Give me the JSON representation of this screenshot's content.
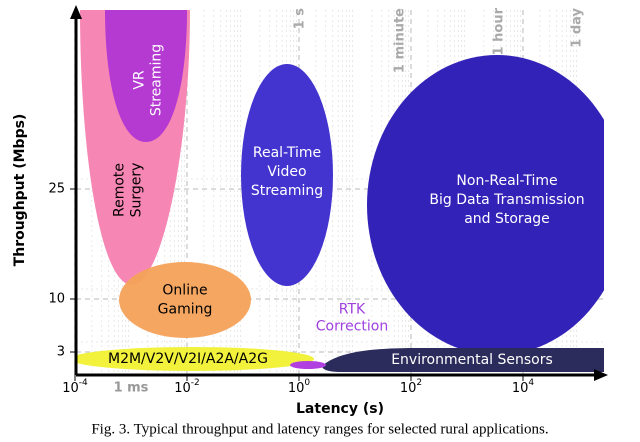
{
  "axes": {
    "x_label": "Latency (s)",
    "y_label": "Throughput (Mbps)",
    "x_ticks": [
      {
        "base": "10",
        "exp": "-4"
      },
      {
        "base": "10",
        "exp": "-2"
      },
      {
        "base": "10",
        "exp": "0"
      },
      {
        "base": "10",
        "exp": "2"
      },
      {
        "base": "10",
        "exp": "4"
      }
    ],
    "y_ticks": [
      "3",
      "10",
      "25"
    ]
  },
  "reference_lines": [
    "1 ms",
    "1 s",
    "1 minute",
    "1 hour",
    "1 day"
  ],
  "regions": [
    {
      "label": [
        "VR",
        "Streaming"
      ]
    },
    {
      "label": [
        "Remote",
        "Surgery"
      ]
    },
    {
      "label": [
        "Online",
        "Gaming"
      ]
    },
    {
      "label": [
        "Real-Time",
        "Video",
        "Streaming"
      ]
    },
    {
      "label": [
        "Non-Real-Time",
        "Big Data Transmission",
        "and Storage"
      ]
    },
    {
      "label": [
        "RTK",
        "Correction"
      ]
    },
    {
      "label": [
        "M2M/V2V/V2I/A2A/A2G"
      ]
    },
    {
      "label": [
        "Environmental Sensors"
      ]
    }
  ],
  "caption": "Fig. 3.  Typical throughput and latency ranges for selected rural applications."
}
